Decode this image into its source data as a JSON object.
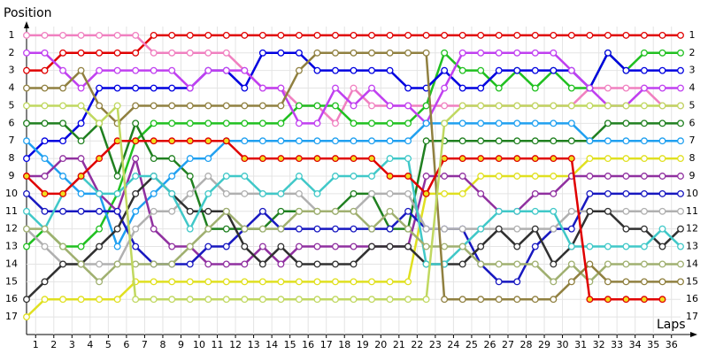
{
  "chart_data": {
    "type": "line",
    "y_label": "Position",
    "x_label": "Laps",
    "x": [
      0,
      1,
      2,
      3,
      4,
      5,
      6,
      7,
      8,
      9,
      10,
      11,
      12,
      13,
      14,
      15,
      16,
      17,
      18,
      19,
      20,
      21,
      22,
      23,
      24,
      25,
      26,
      27,
      28,
      29,
      30,
      31,
      32,
      33,
      34,
      35,
      36
    ],
    "xlim": [
      0,
      36
    ],
    "xticks": [
      1,
      2,
      3,
      4,
      5,
      6,
      7,
      8,
      9,
      10,
      11,
      12,
      13,
      14,
      15,
      16,
      17,
      18,
      19,
      20,
      21,
      22,
      23,
      24,
      25,
      26,
      27,
      28,
      29,
      30,
      31,
      32,
      33,
      34,
      35,
      36
    ],
    "ylim": [
      0,
      18
    ],
    "y_inverted": true,
    "yticks": [
      1,
      2,
      3,
      4,
      5,
      6,
      7,
      8,
      9,
      10,
      11,
      12,
      13,
      14,
      15,
      16,
      17
    ],
    "grid": true,
    "series": [
      {
        "color": "#e00000",
        "marker_fill": "#ffffff",
        "values": [
          3,
          3,
          2,
          2,
          2,
          2,
          2,
          1,
          1,
          1,
          1,
          1,
          1,
          1,
          1,
          1,
          1,
          1,
          1,
          1,
          1,
          1,
          1,
          1,
          1,
          1,
          1,
          1,
          1,
          1,
          1,
          1,
          1,
          1,
          1,
          1,
          1
        ]
      },
      {
        "color": "#f080c0",
        "marker_fill": "#ffffff",
        "values": [
          1,
          1,
          1,
          1,
          1,
          1,
          1,
          2,
          2,
          2,
          2,
          2,
          3,
          4,
          4,
          5,
          5,
          6,
          4,
          5,
          5,
          5,
          5,
          5,
          5,
          5,
          5,
          5,
          5,
          5,
          5,
          4,
          4,
          4,
          4,
          5,
          5
        ]
      },
      {
        "color": "#20c020",
        "marker_fill": "#ffffff",
        "values": [
          13,
          12,
          13,
          13,
          12,
          10,
          7,
          6,
          6,
          6,
          6,
          6,
          6,
          6,
          6,
          5,
          5,
          5,
          6,
          6,
          6,
          6,
          5,
          2,
          3,
          3,
          4,
          3,
          4,
          3,
          4,
          4,
          2,
          3,
          2,
          2,
          2
        ]
      },
      {
        "color": "#0000e0",
        "marker_fill": "#ffffff",
        "values": [
          8,
          7,
          7,
          6,
          4,
          4,
          4,
          4,
          4,
          4,
          3,
          3,
          4,
          2,
          2,
          2,
          3,
          3,
          3,
          3,
          3,
          4,
          4,
          3,
          4,
          4,
          3,
          3,
          3,
          3,
          3,
          4,
          2,
          3,
          3,
          3,
          3
        ]
      },
      {
        "color": "#c040f0",
        "marker_fill": "#ffffff",
        "values": [
          2,
          2,
          3,
          4,
          3,
          3,
          3,
          3,
          3,
          4,
          3,
          3,
          3,
          4,
          4,
          6,
          6,
          4,
          5,
          4,
          5,
          5,
          6,
          4,
          2,
          2,
          2,
          2,
          2,
          2,
          3,
          4,
          5,
          5,
          4,
          4,
          4
        ]
      },
      {
        "color": "#208020",
        "marker_fill": "#ffffff",
        "values": [
          6,
          6,
          6,
          7,
          6,
          9,
          6,
          8,
          8,
          9,
          12,
          12,
          12,
          12,
          11,
          11,
          11,
          11,
          10,
          10,
          12,
          12,
          7,
          7,
          7,
          7,
          7,
          7,
          7,
          7,
          7,
          7,
          6,
          6,
          6,
          6,
          6
        ]
      },
      {
        "color": "#20a0f0",
        "marker_fill": "#ffffff",
        "values": [
          7,
          8,
          9,
          10,
          10,
          13,
          11,
          10,
          9,
          8,
          8,
          7,
          7,
          7,
          7,
          7,
          7,
          7,
          7,
          7,
          7,
          7,
          6,
          6,
          6,
          6,
          6,
          6,
          6,
          6,
          6,
          7,
          7,
          7,
          7,
          7,
          7
        ]
      },
      {
        "color": "#e0e020",
        "marker_fill": "#ffffff",
        "values": [
          17,
          16,
          16,
          16,
          16,
          16,
          15,
          15,
          15,
          15,
          15,
          15,
          15,
          15,
          15,
          15,
          15,
          15,
          15,
          15,
          15,
          15,
          10,
          10,
          10,
          9,
          9,
          9,
          9,
          9,
          9,
          8,
          8,
          8,
          8,
          8,
          8
        ]
      },
      {
        "color": "#9030a0",
        "marker_fill": "#ffffff",
        "values": [
          9,
          9,
          8,
          8,
          10,
          11,
          8,
          12,
          13,
          13,
          14,
          14,
          14,
          13,
          14,
          13,
          13,
          13,
          13,
          13,
          13,
          13,
          9,
          9,
          9,
          10,
          11,
          11,
          10,
          10,
          9,
          9,
          9,
          9,
          9,
          9,
          9
        ]
      },
      {
        "color": "#1818c0",
        "marker_fill": "#ffffff",
        "values": [
          10,
          11,
          11,
          11,
          11,
          11,
          13,
          14,
          14,
          14,
          13,
          13,
          12,
          11,
          12,
          12,
          12,
          12,
          12,
          12,
          12,
          11,
          12,
          12,
          12,
          14,
          15,
          15,
          13,
          12,
          12,
          10,
          10,
          10,
          10,
          10,
          10
        ]
      },
      {
        "color": "#b0b0b0",
        "marker_fill": "#ffffff",
        "values": [
          12,
          13,
          14,
          14,
          14,
          14,
          12,
          11,
          11,
          10,
          9,
          10,
          10,
          10,
          10,
          10,
          11,
          11,
          11,
          10,
          10,
          10,
          12,
          12,
          12,
          12,
          12,
          12,
          12,
          12,
          11,
          11,
          11,
          11,
          11,
          11,
          11
        ]
      },
      {
        "color": "#303030",
        "marker_fill": "#ffffff",
        "values": [
          16,
          15,
          14,
          14,
          13,
          12,
          10,
          9,
          10,
          11,
          11,
          11,
          13,
          14,
          13,
          14,
          14,
          14,
          14,
          13,
          13,
          13,
          14,
          14,
          14,
          13,
          12,
          13,
          12,
          14,
          13,
          11,
          11,
          12,
          12,
          13,
          12
        ]
      },
      {
        "color": "#40c8c8",
        "marker_fill": "#ffffff",
        "values": [
          11,
          12,
          10,
          9,
          10,
          10,
          9,
          9,
          10,
          12,
          10,
          9,
          9,
          10,
          10,
          9,
          10,
          9,
          9,
          9,
          8,
          8,
          14,
          14,
          13,
          12,
          11,
          11,
          11,
          11,
          13,
          13,
          13,
          13,
          13,
          12,
          13
        ]
      },
      {
        "color": "#a0b070",
        "marker_fill": "#ffffff",
        "values": [
          12,
          12,
          13,
          14,
          15,
          14,
          14,
          14,
          14,
          13,
          12,
          11,
          12,
          12,
          12,
          11,
          11,
          11,
          11,
          12,
          11,
          12,
          13,
          13,
          13,
          14,
          14,
          14,
          14,
          15,
          14,
          15,
          14,
          14,
          14,
          14,
          14
        ]
      },
      {
        "color": "#908040",
        "marker_fill": "#ffffff",
        "values": [
          4,
          4,
          4,
          3,
          5,
          6,
          5,
          5,
          5,
          5,
          5,
          5,
          5,
          5,
          5,
          3,
          2,
          2,
          2,
          2,
          2,
          2,
          2,
          16,
          16,
          16,
          16,
          16,
          16,
          16,
          15,
          14,
          15,
          15,
          15,
          15,
          15
        ]
      },
      {
        "color": "#e00000",
        "marker_fill": "#f0e020",
        "values": [
          9,
          10,
          10,
          9,
          8,
          7,
          7,
          7,
          7,
          7,
          7,
          7,
          8,
          8,
          8,
          8,
          8,
          8,
          8,
          8,
          9,
          9,
          10,
          8,
          8,
          8,
          8,
          8,
          8,
          8,
          8,
          16,
          16,
          16,
          16,
          16,
          null
        ]
      },
      {
        "color": "#c0d860",
        "marker_fill": "#ffffff",
        "values": [
          5,
          5,
          5,
          5,
          6,
          5,
          16,
          16,
          16,
          16,
          16,
          16,
          16,
          16,
          16,
          16,
          16,
          16,
          16,
          16,
          16,
          16,
          16,
          6,
          5,
          5,
          5,
          5,
          5,
          5,
          5,
          5,
          5,
          5,
          5,
          5,
          5
        ]
      }
    ]
  }
}
